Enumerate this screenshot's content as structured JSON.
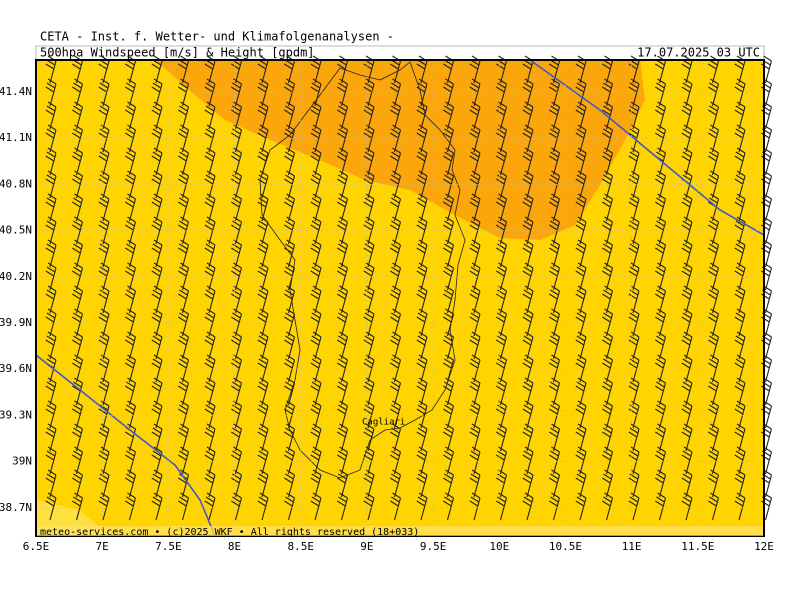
{
  "header": {
    "title": "CETA - Inst. f. Wetter- und Klimafolgenanalysen -",
    "product": "500hpa Windspeed [m/s] & Height [gpdm]",
    "valid": "17.07.2025 03 UTC"
  },
  "map": {
    "lat_labels": [
      "41.4N",
      "41.1N",
      "40.8N",
      "40.5N",
      "40.2N",
      "39.9N",
      "39.6N",
      "39.3N",
      "39N",
      "38.7N"
    ],
    "lon_labels": [
      "6.5E",
      "7E",
      "7.5E",
      "8E",
      "8.5E",
      "9E",
      "9.5E",
      "10E",
      "10.5E",
      "11E",
      "11.5E",
      "12E"
    ],
    "place": "Cagliari"
  },
  "footer": "meteo-services.com • (c)2025 WKF • All rights reserved (18+033)"
}
